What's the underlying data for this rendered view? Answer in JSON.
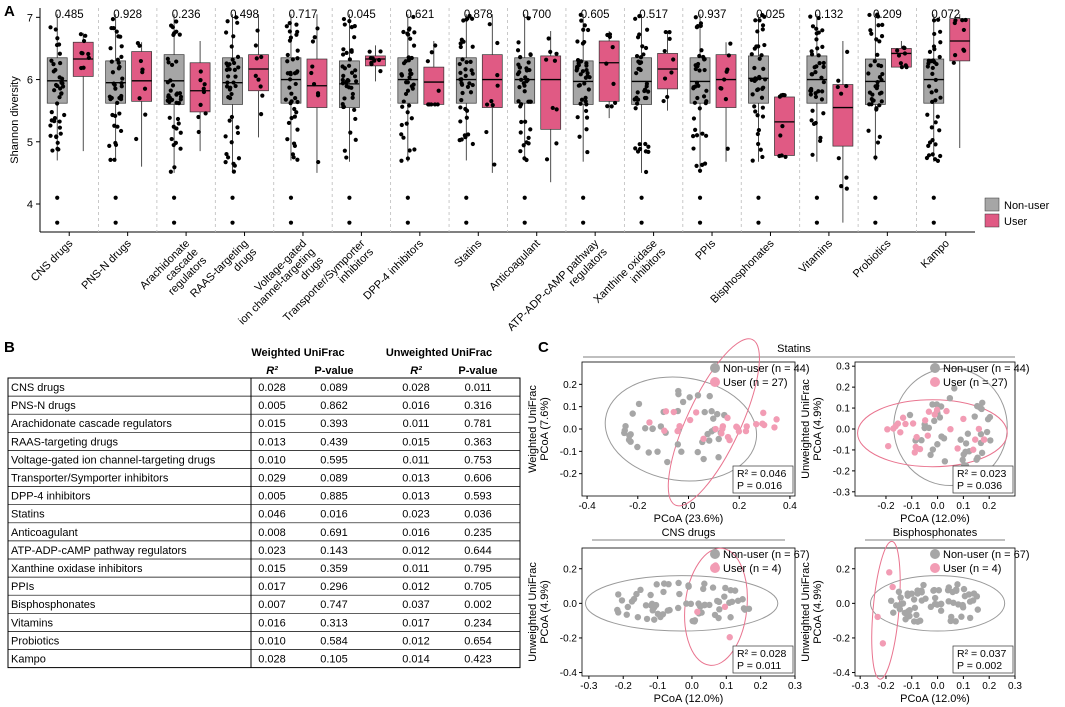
{
  "panel_labels": {
    "a": "A",
    "b": "B",
    "c": "C"
  },
  "colors": {
    "nonuser": "#a6a6a6",
    "user": "#e05a84",
    "user_light": "#f29cb4",
    "ellipse_nonuser": "#9a9a9a",
    "ellipse_user": "#e9748f"
  },
  "chart_data": [
    {
      "id": "A",
      "type": "box",
      "title": "",
      "ylabel": "Shannon diversity",
      "ylim": [
        3.55,
        7.15
      ],
      "yticks": [
        4,
        5,
        6,
        7
      ],
      "legend": {
        "position": "right",
        "entries": [
          "Non-user",
          "User"
        ]
      },
      "categories": [
        "CNS drugs",
        "PNS-N drugs",
        "Arachidonate cascade regulators",
        "RAAS-targeting drugs",
        "Voltage-gated ion channel-targeting drugs",
        "Transporter/Symporter inhibitors",
        "DPP-4 inhibitors",
        "Statins",
        "Anticoagulant",
        "ATP-ADP-cAMP pathway regulators",
        "Xanthine oxidase inhibitors",
        "PPIs",
        "Bisphosphonates",
        "Vitamins",
        "Probiotics",
        "Kampo"
      ],
      "tick_labels": [
        [
          "CNS drugs"
        ],
        [
          "PNS-N drugs"
        ],
        [
          "Arachidonate",
          "cascade",
          "regulators"
        ],
        [
          "RAAS-targeting",
          "drugs"
        ],
        [
          "Voltage-gated",
          "ion channel-targeting",
          "drugs"
        ],
        [
          "Transporter/Symporter",
          "inhibitors"
        ],
        [
          "DPP-4 inhibitors"
        ],
        [
          "Statins"
        ],
        [
          "Anticoagulant"
        ],
        [
          "ATP-ADP-cAMP pathway",
          "regulators"
        ],
        [
          "Xanthine oxidase",
          "inhibitors"
        ],
        [
          "PPIs"
        ],
        [
          "Bisphosphonates"
        ],
        [
          "Vitamins"
        ],
        [
          "Probiotics"
        ],
        [
          "Kampo"
        ]
      ],
      "p_values": [
        "0.485",
        "0.928",
        "0.236",
        "0.498",
        "0.717",
        "0.045",
        "0.621",
        "0.878",
        "0.700",
        "0.605",
        "0.517",
        "0.937",
        "0.025",
        "0.132",
        "0.209",
        "0.072"
      ],
      "nonuser_box": [
        [
          4.7,
          5.62,
          5.98,
          6.35,
          7.05
        ],
        [
          4.68,
          5.62,
          5.95,
          6.3,
          7.05
        ],
        [
          4.5,
          5.6,
          5.98,
          6.4,
          7.05
        ],
        [
          4.5,
          5.6,
          5.95,
          6.35,
          7.05
        ],
        [
          4.7,
          5.62,
          6.0,
          6.35,
          7.05
        ],
        [
          4.68,
          5.55,
          5.93,
          6.3,
          7.05
        ],
        [
          4.68,
          5.62,
          6.0,
          6.35,
          7.05
        ],
        [
          4.7,
          5.62,
          6.0,
          6.35,
          7.05
        ],
        [
          4.7,
          5.62,
          6.0,
          6.35,
          7.05
        ],
        [
          4.68,
          5.6,
          5.97,
          6.3,
          7.05
        ],
        [
          4.5,
          5.6,
          5.97,
          6.35,
          7.05
        ],
        [
          4.5,
          5.62,
          5.97,
          6.35,
          7.05
        ],
        [
          4.68,
          5.62,
          6.02,
          6.38,
          7.05
        ],
        [
          4.68,
          5.62,
          6.0,
          6.38,
          7.05
        ],
        [
          4.7,
          5.6,
          5.97,
          6.33,
          7.05
        ],
        [
          4.68,
          5.62,
          6.0,
          6.33,
          7.05
        ]
      ],
      "user_box": [
        [
          4.85,
          6.05,
          6.33,
          6.6,
          6.75
        ],
        [
          4.6,
          5.65,
          5.98,
          6.45,
          6.6
        ],
        [
          4.85,
          5.48,
          5.82,
          6.27,
          6.62
        ],
        [
          5.07,
          5.82,
          6.17,
          6.4,
          7.05
        ],
        [
          4.5,
          5.55,
          5.9,
          6.33,
          7.05
        ],
        [
          5.97,
          6.22,
          6.33,
          6.38,
          6.55
        ],
        [
          5.6,
          5.6,
          5.96,
          6.2,
          6.62
        ],
        [
          4.5,
          5.55,
          6.0,
          6.4,
          7.05
        ],
        [
          4.35,
          5.2,
          6.0,
          6.38,
          6.78
        ],
        [
          5.38,
          5.65,
          6.27,
          6.62,
          6.78
        ],
        [
          5.5,
          5.85,
          6.17,
          6.42,
          6.78
        ],
        [
          4.68,
          5.55,
          6.0,
          6.4,
          6.6
        ],
        [
          4.75,
          4.78,
          5.32,
          5.72,
          5.78
        ],
        [
          3.7,
          4.93,
          5.55,
          5.92,
          6.62
        ],
        [
          6.2,
          6.2,
          6.42,
          6.5,
          6.62
        ],
        [
          4.9,
          6.3,
          6.62,
          6.98,
          7.05
        ]
      ]
    },
    {
      "id": "B",
      "type": "table",
      "group_headers": [
        "Weighted UniFrac",
        "Unweighted UniFrac"
      ],
      "columns": [
        "R²",
        "P-value",
        "R²",
        "P-value"
      ],
      "rows": [
        [
          "CNS drugs",
          "0.028",
          "0.089",
          "0.028",
          "0.011"
        ],
        [
          "PNS-N drugs",
          "0.005",
          "0.862",
          "0.016",
          "0.316"
        ],
        [
          "Arachidonate cascade regulators",
          "0.015",
          "0.393",
          "0.011",
          "0.781"
        ],
        [
          "RAAS-targeting drugs",
          "0.013",
          "0.439",
          "0.015",
          "0.363"
        ],
        [
          "Voltage-gated ion channel-targeting drugs",
          "0.010",
          "0.595",
          "0.011",
          "0.753"
        ],
        [
          "Transporter/Symporter inhibitors",
          "0.029",
          "0.089",
          "0.013",
          "0.606"
        ],
        [
          "DPP-4 inhibitors",
          "0.005",
          "0.885",
          "0.013",
          "0.593"
        ],
        [
          "Statins",
          "0.046",
          "0.016",
          "0.023",
          "0.036"
        ],
        [
          "Anticoagulant",
          "0.008",
          "0.691",
          "0.016",
          "0.235"
        ],
        [
          "ATP-ADP-cAMP pathway regulators",
          "0.023",
          "0.143",
          "0.012",
          "0.644"
        ],
        [
          "Xanthine oxidase inhibitors",
          "0.015",
          "0.359",
          "0.011",
          "0.795"
        ],
        [
          "PPIs",
          "0.017",
          "0.296",
          "0.012",
          "0.705"
        ],
        [
          "Bisphosphonates",
          "0.007",
          "0.747",
          "0.037",
          "0.002"
        ],
        [
          "Vitamins",
          "0.016",
          "0.313",
          "0.017",
          "0.234"
        ],
        [
          "Probiotics",
          "0.010",
          "0.584",
          "0.012",
          "0.654"
        ],
        [
          "Kampo",
          "0.028",
          "0.105",
          "0.014",
          "0.423"
        ]
      ]
    },
    {
      "id": "C1",
      "type": "scatter",
      "group_title": "Statins",
      "subtitle": "",
      "xlabel": "PCoA (23.6%)",
      "ylabel": "Weighted UniFrac",
      "ylabel2": "PCoA (7.6%)",
      "xlim": [
        -0.42,
        0.42
      ],
      "ylim": [
        -0.3,
        0.3
      ],
      "xticks": [
        "-0.4",
        "-0.2",
        "0.0",
        "0.2",
        "0.4"
      ],
      "yticks": [
        "-0.2",
        "-0.1",
        "0.0",
        "0.1",
        "0.2"
      ],
      "xtick_values": [
        -0.4,
        -0.2,
        0.0,
        0.2,
        0.4
      ],
      "ytick_values": [
        -0.2,
        -0.1,
        0.0,
        0.1,
        0.2
      ],
      "legend": [
        "Non-user (n = 44)",
        "User (n = 27)"
      ],
      "stats": [
        "R² = 0.046",
        "P = 0.016"
      ],
      "ellipses": [
        {
          "group": "nonuser",
          "cx": -0.03,
          "cy": 0.0,
          "rx": 0.3,
          "ry": 0.23,
          "angle": 8
        },
        {
          "group": "user",
          "cx": 0.1,
          "cy": 0.03,
          "rx": 0.36,
          "ry": 0.12,
          "angle": -65
        }
      ]
    },
    {
      "id": "C2",
      "type": "scatter",
      "group_title": "",
      "subtitle": "",
      "xlabel": "PCoA (12.0%)",
      "ylabel": "Unweighted UniFrac",
      "ylabel2": "PCoA (4.9%)",
      "xlim": [
        -0.32,
        0.3
      ],
      "ylim": [
        -0.32,
        0.32
      ],
      "xticks": [
        "-0.2",
        "-0.1",
        "0.0",
        "0.1",
        "0.2"
      ],
      "yticks": [
        "-0.3",
        "-0.2",
        "-0.1",
        "0.0",
        "0.1",
        "0.2",
        "0.3"
      ],
      "xtick_values": [
        -0.2,
        -0.1,
        0.0,
        0.1,
        0.2
      ],
      "ytick_values": [
        -0.3,
        -0.2,
        -0.1,
        0.0,
        0.1,
        0.2,
        0.3
      ],
      "legend": [
        "Non-user (n = 44)",
        "User (n = 27)"
      ],
      "stats": [
        "R² = 0.023",
        "P = 0.036"
      ],
      "ellipses": [
        {
          "group": "nonuser",
          "cx": 0.05,
          "cy": 0.01,
          "rx": 0.22,
          "ry": 0.28,
          "angle": 0
        },
        {
          "group": "user",
          "cx": -0.02,
          "cy": -0.02,
          "rx": 0.29,
          "ry": 0.16,
          "angle": 0
        }
      ]
    },
    {
      "id": "C3",
      "type": "scatter",
      "group_title": "",
      "subtitle": "CNS drugs",
      "xlabel": "PCoA (12.0%)",
      "ylabel": "Unweighted UniFrac",
      "ylabel2": "PCoA (4.9%)",
      "xlim": [
        -0.32,
        0.3
      ],
      "ylim": [
        -0.42,
        0.32
      ],
      "xticks": [
        "-0.3",
        "-0.2",
        "-0.1",
        "0.0",
        "0.1",
        "0.2",
        "0.3"
      ],
      "yticks": [
        "-0.4",
        "-0.2",
        "0.0",
        "0.2"
      ],
      "xtick_values": [
        -0.3,
        -0.2,
        -0.1,
        0.0,
        0.1,
        0.2,
        0.3
      ],
      "ytick_values": [
        -0.4,
        -0.2,
        0.0,
        0.2
      ],
      "legend": [
        "Non-user (n = 67)",
        "User (n = 4)"
      ],
      "stats": [
        "R² = 0.028",
        "P = 0.011"
      ],
      "ellipses": [
        {
          "group": "nonuser",
          "cx": -0.03,
          "cy": 0.0,
          "rx": 0.28,
          "ry": 0.16,
          "angle": 0
        },
        {
          "group": "user",
          "cx": 0.07,
          "cy": -0.02,
          "rx": 0.09,
          "ry": 0.34,
          "angle": 6
        }
      ]
    },
    {
      "id": "C4",
      "type": "scatter",
      "group_title": "",
      "subtitle": "Bisphosphonates",
      "xlabel": "PCoA (12.0%)",
      "ylabel": "Unweighted UniFrac",
      "ylabel2": "PCoA (4.9%)",
      "xlim": [
        -0.32,
        0.3
      ],
      "ylim": [
        -0.42,
        0.32
      ],
      "xticks": [
        "-0.3",
        "-0.2",
        "-0.1",
        "0.0",
        "0.1",
        "0.2",
        "0.3"
      ],
      "yticks": [
        "-0.4",
        "-0.2",
        "0.0",
        "0.2"
      ],
      "xtick_values": [
        -0.3,
        -0.2,
        -0.1,
        0.0,
        0.1,
        0.2,
        0.3
      ],
      "ytick_values": [
        -0.4,
        -0.2,
        0.0,
        0.2
      ],
      "legend": [
        "Non-user (n = 67)",
        "User (n = 4)"
      ],
      "stats": [
        "R² = 0.037",
        "P = 0.002"
      ],
      "ellipses": [
        {
          "group": "nonuser",
          "cx": 0.0,
          "cy": 0.0,
          "rx": 0.26,
          "ry": 0.16,
          "angle": 0
        },
        {
          "group": "user",
          "cx": -0.2,
          "cy": -0.04,
          "rx": 0.05,
          "ry": 0.4,
          "angle": 5
        }
      ]
    }
  ]
}
